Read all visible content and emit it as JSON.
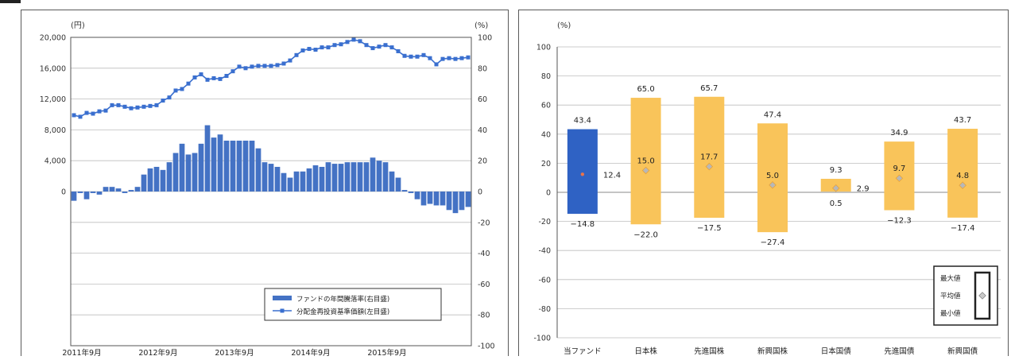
{
  "colors": {
    "blue": "#3a6fcf",
    "bar_blue": "#4472c4",
    "orange": "#f9c45a",
    "diamond": "#e8a43a",
    "fund_bar": "#2f62c4",
    "fund_marker": "#e8734a",
    "grid": "#bdbdbd",
    "axis": "#333333"
  },
  "chart_data": [
    {
      "type": "bar",
      "title": "",
      "y_left_unit": "(円)",
      "y_right_unit": "(%)",
      "ylim_left": [
        -20000,
        20000
      ],
      "ylim_right": [
        -100,
        100
      ],
      "y_left_ticks": [
        "20,000",
        "16,000",
        "12,000",
        "8,000",
        "4,000",
        "0"
      ],
      "y_left_tick_values": [
        20000,
        16000,
        12000,
        8000,
        4000,
        0
      ],
      "y_right_ticks": [
        "100",
        "80",
        "60",
        "40",
        "20",
        "0",
        "-20",
        "-40",
        "-60",
        "-80",
        "-100"
      ],
      "y_right_tick_values": [
        100,
        80,
        60,
        40,
        20,
        0,
        -20,
        -40,
        -60,
        -80,
        -100
      ],
      "x_ticks": [
        "2011年9月",
        "2012年9月",
        "2013年9月",
        "2014年9月",
        "2015年9月"
      ],
      "x_tick_index": [
        0,
        12,
        24,
        36,
        48
      ],
      "legend": {
        "position": "bottom-right",
        "bar_label": "ファンドの年間騰落率(右目盛)",
        "line_label": "分配金再投資基準価額(左目盛)"
      },
      "bar_series": {
        "name": "ファンドの年間騰落率(右目盛)",
        "axis": "right",
        "values": [
          -6,
          -1,
          -5,
          -1,
          -2,
          3,
          3,
          2,
          -1,
          1,
          3,
          11,
          15,
          16,
          14,
          19,
          25,
          31,
          24,
          25,
          31,
          43,
          35,
          37,
          33,
          33,
          33,
          33,
          33,
          28,
          19,
          18,
          16,
          12,
          9,
          13,
          13,
          15,
          17,
          16,
          19,
          18,
          18,
          19,
          19,
          19,
          19,
          22,
          20,
          19,
          13,
          9,
          1,
          -1,
          -5,
          -9,
          -8,
          -9,
          -9,
          -12,
          -14,
          -12,
          -10
        ]
      },
      "line_series": {
        "name": "分配金再投資基準価額(左目盛)",
        "axis": "left",
        "values": [
          9900,
          9700,
          10200,
          10100,
          10400,
          10500,
          11200,
          11200,
          11000,
          10800,
          10900,
          11000,
          11100,
          11200,
          11800,
          12200,
          13100,
          13300,
          14000,
          14800,
          15200,
          14500,
          14700,
          14600,
          15000,
          15600,
          16200,
          16000,
          16200,
          16300,
          16300,
          16300,
          16400,
          16600,
          17000,
          17700,
          18300,
          18500,
          18400,
          18700,
          18700,
          19000,
          19100,
          19400,
          19700,
          19500,
          19000,
          18600,
          18800,
          19000,
          18700,
          18200,
          17600,
          17500,
          17500,
          17700,
          17300,
          16500,
          17200,
          17300,
          17200,
          17300,
          17400
        ]
      }
    },
    {
      "type": "bar",
      "title": "",
      "y_unit": "(%)",
      "ylim": [
        -100,
        100
      ],
      "y_ticks": [
        "100",
        "80",
        "60",
        "40",
        "20",
        "0",
        "-20",
        "-40",
        "-60",
        "-80",
        "-100"
      ],
      "y_tick_values": [
        100,
        80,
        60,
        40,
        20,
        0,
        -20,
        -40,
        -60,
        -80,
        -100
      ],
      "categories": [
        "当ファンド",
        "日本株",
        "先進国株",
        "新興国株",
        "日本国債",
        "先進国債",
        "新興国債"
      ],
      "max": [
        43.4,
        65.0,
        65.7,
        47.4,
        9.3,
        34.9,
        43.7
      ],
      "mean": [
        12.4,
        15.0,
        17.7,
        5.0,
        2.9,
        9.7,
        4.8
      ],
      "min": [
        -14.8,
        -22.0,
        -17.5,
        -27.4,
        0.5,
        -12.3,
        -17.4
      ],
      "max_labels": [
        "43.4",
        "65.0",
        "65.7",
        "47.4",
        "9.3",
        "34.9",
        "43.7"
      ],
      "mean_labels": [
        "12.4",
        "15.0",
        "17.7",
        "5.0",
        "2.9",
        "9.7",
        "4.8"
      ],
      "min_labels": [
        "−14.8",
        "−22.0",
        "−17.5",
        "−27.4",
        "0.5",
        "−12.3",
        "−17.4"
      ],
      "legend": {
        "position": "bottom-right",
        "max_label": "最大値",
        "mean_label": "平均値",
        "min_label": "最小値"
      }
    }
  ]
}
